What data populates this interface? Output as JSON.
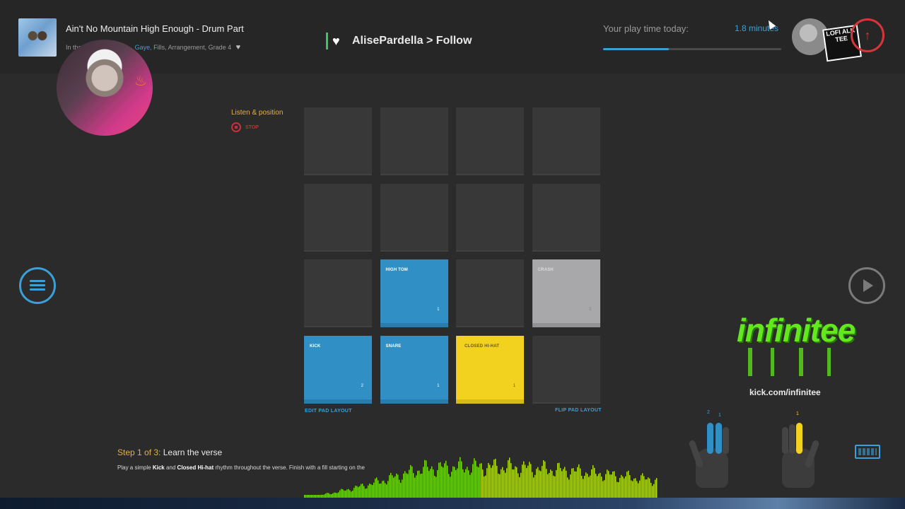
{
  "header": {
    "song_title": "Ain't No Mountain High Enough - Drum Part",
    "song_sub_prefix": "In the",
    "song_sub_artist": "Gaye,",
    "song_sub_rest": "Fills, Arrangement, Grade 4",
    "streamer_name": "AlisePardella > Follow",
    "playtime_label": "Your play time today:",
    "playtime_value": "1.8 minutes",
    "playtime_progress": 0.37
  },
  "sticker_text": "LOFI ALK TEE",
  "listen": {
    "label": "Listen & position",
    "stop_label": "STOP"
  },
  "pads": [
    {
      "label": "",
      "number": "",
      "color": "dark"
    },
    {
      "label": "",
      "number": "",
      "color": "dark"
    },
    {
      "label": "",
      "number": "",
      "color": "dark"
    },
    {
      "label": "",
      "number": "",
      "color": "dark"
    },
    {
      "label": "",
      "number": "",
      "color": "dark"
    },
    {
      "label": "",
      "number": "",
      "color": "dark"
    },
    {
      "label": "",
      "number": "",
      "color": "dark"
    },
    {
      "label": "",
      "number": "",
      "color": "dark"
    },
    {
      "label": "",
      "number": "",
      "color": "dark"
    },
    {
      "label": "HIGH TOM",
      "number": "1",
      "color": "blue"
    },
    {
      "label": "",
      "number": "",
      "color": "dark"
    },
    {
      "label": "CRASH",
      "number": "2",
      "color": "gray"
    },
    {
      "label": "KICK",
      "number": "2",
      "color": "blue"
    },
    {
      "label": "SNARE",
      "number": "1",
      "color": "blue"
    },
    {
      "label": "CLOSED HI-HAT",
      "number": "1",
      "color": "yellow"
    },
    {
      "label": "",
      "number": "",
      "color": "dark"
    }
  ],
  "pad_links": {
    "edit": "EDIT PAD LAYOUT",
    "flip": "FLIP PAD LAYOUT"
  },
  "brand": {
    "name": "infinitee",
    "url": "kick.com/infinitee"
  },
  "hands": {
    "left_numbers": [
      "2",
      "1"
    ],
    "right_numbers": [
      "1"
    ]
  },
  "step": {
    "number": "Step 1 of 3:",
    "name": "Learn the verse",
    "desc_1": "Play a simple",
    "desc_kick": "Kick",
    "desc_2": "and",
    "desc_hihat": "Closed Hi-hat",
    "desc_3": "rhythm throughout the verse. Finish with a fill starting on the"
  },
  "colors": {
    "accent_blue": "#3090c6",
    "accent_yellow": "#f2d21e",
    "alert_red": "#d6363a",
    "brand_green": "#62e81c"
  }
}
